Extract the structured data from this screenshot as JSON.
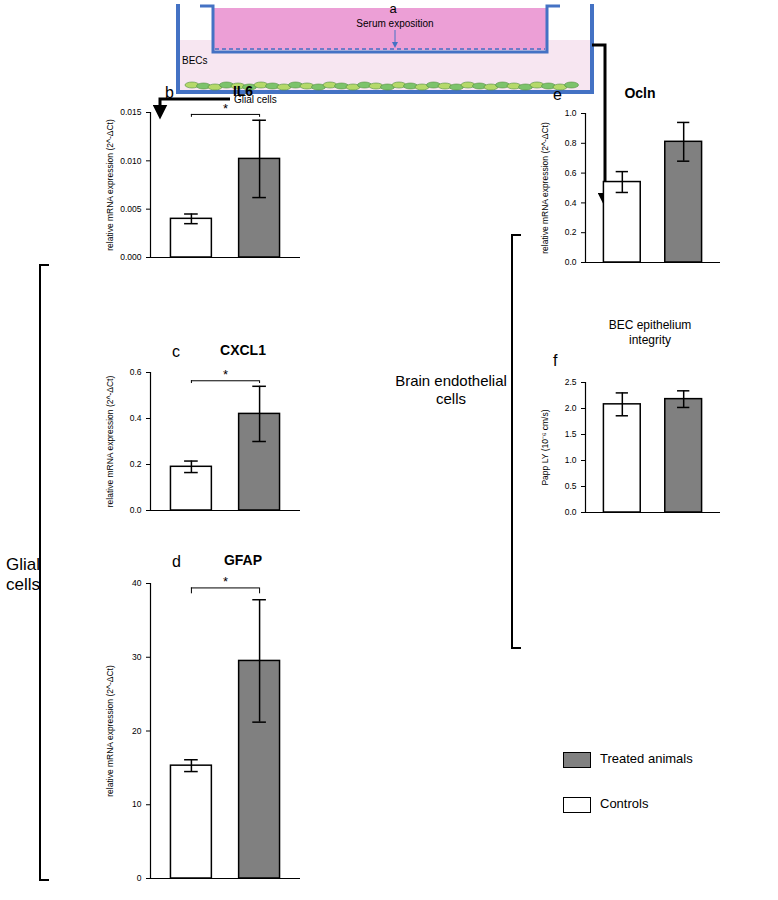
{
  "diagram": {
    "panel": "a",
    "serum_label": "Serum exposition",
    "becs_label": "BECs",
    "glia_label": "Glial cells"
  },
  "groups": {
    "glial": "Glial cells",
    "endothelial": "Brain endothelial cells"
  },
  "legend": [
    {
      "name": "Treated animals",
      "color": "#808080"
    },
    {
      "name": "Controls",
      "color": "#ffffff"
    }
  ],
  "chart_data": [
    {
      "type": "bar",
      "panel": "b",
      "title": "IL6",
      "y_label": "relative mRNA expression (2^-ΔCt)",
      "categories": [
        "Controls",
        "Treated animals"
      ],
      "values": [
        0.004,
        0.0102
      ],
      "errors": [
        0.0005,
        0.004
      ],
      "colors": [
        "#ffffff",
        "#808080"
      ],
      "ylim": [
        0,
        0.015
      ],
      "yticks": [
        {
          "value": 0,
          "label": "0.000"
        },
        {
          "value": 0.005,
          "label": "0.005"
        },
        {
          "value": 0.01,
          "label": "0.010"
        },
        {
          "value": 0.015,
          "label": "0.015"
        }
      ],
      "tick_labels": "y",
      "significance": "*"
    },
    {
      "type": "bar",
      "panel": "c",
      "title": "CXCL1",
      "y_label": "relative mRNA expression (2^-ΔCt)",
      "categories": [
        "Controls",
        "Treated animals"
      ],
      "values": [
        0.19,
        0.42
      ],
      "errors": [
        0.025,
        0.12
      ],
      "colors": [
        "#ffffff",
        "#808080"
      ],
      "ylim": [
        0,
        0.6
      ],
      "yticks": [
        {
          "value": 0,
          "label": "0.0"
        },
        0.2,
        0.4,
        0.6
      ],
      "tick_labels": "y",
      "significance": "*"
    },
    {
      "type": "bar",
      "panel": "d",
      "title": "GFAP",
      "y_label": "relative mRNA expression (2^-ΔCt)",
      "categories": [
        "Controls",
        "Treated animals"
      ],
      "values": [
        15.3,
        29.5
      ],
      "errors": [
        0.8,
        8.3
      ],
      "colors": [
        "#ffffff",
        "#808080"
      ],
      "ylim": [
        0,
        40
      ],
      "yticks": [
        0,
        10,
        20,
        30,
        40
      ],
      "tick_labels": "y",
      "significance": "*"
    },
    {
      "type": "bar",
      "panel": "e",
      "title": "Ocln",
      "y_label": "relative mRNA expression (2^-ΔCt)",
      "categories": [
        "Controls",
        "Treated animals"
      ],
      "values": [
        0.54,
        0.81
      ],
      "errors": [
        0.07,
        0.13
      ],
      "colors": [
        "#ffffff",
        "#808080"
      ],
      "ylim": [
        0,
        1.0
      ],
      "yticks": [
        {
          "value": 0,
          "label": "0.0"
        },
        0.2,
        0.4,
        0.6,
        0.8,
        {
          "value": 1.0,
          "label": "1.0"
        }
      ],
      "tick_labels": "y"
    },
    {
      "type": "bar",
      "panel": "f",
      "title": "BEC epithelium integrity",
      "y_label": "Papp LY (10⁻⁶ cm/s)",
      "categories": [
        "Controls",
        "Treated animals"
      ],
      "values": [
        2.08,
        2.18
      ],
      "errors": [
        0.22,
        0.16
      ],
      "colors": [
        "#ffffff",
        "#808080"
      ],
      "ylim": [
        0,
        2.5
      ],
      "yticks": [
        {
          "value": 0,
          "label": "0.0"
        },
        0.5,
        {
          "value": 1.0,
          "label": "1.0"
        },
        1.5,
        {
          "value": 2.0,
          "label": "2.0"
        },
        2.5
      ],
      "tick_labels": "y"
    }
  ]
}
